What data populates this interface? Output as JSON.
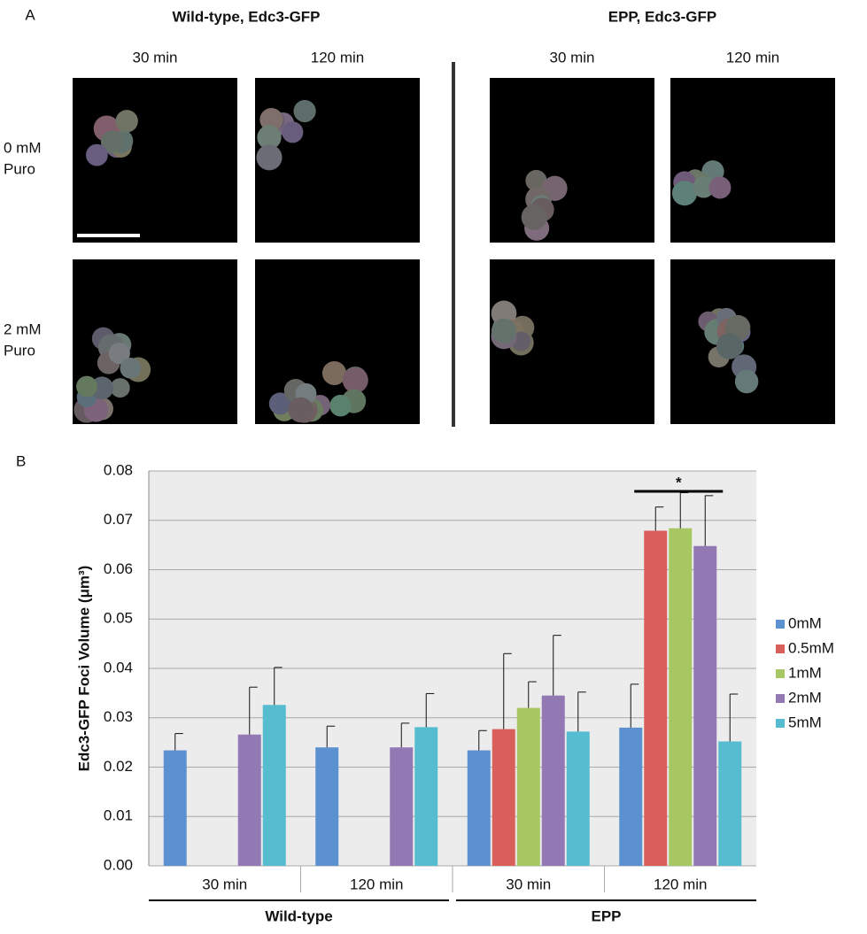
{
  "panel_a": {
    "label": "A",
    "groups": [
      {
        "title": "Wild-type, Edc3-GFP",
        "columns": [
          "30 min",
          "120 min"
        ]
      },
      {
        "title": "EPP, Edc3-GFP",
        "columns": [
          "30 min",
          "120 min"
        ]
      }
    ],
    "rows": [
      [
        "0 mM",
        "Puro"
      ],
      [
        "2 mM",
        "Puro"
      ]
    ]
  },
  "chart_data": {
    "type": "bar",
    "label": "B",
    "ylabel": "Edc3-GFP Foci Volume (μm³)",
    "categories": [
      "30 min",
      "120 min",
      "30 min",
      "120 min"
    ],
    "groups": [
      {
        "name": "Wild-type",
        "span": [
          0,
          1
        ]
      },
      {
        "name": "EPP",
        "span": [
          2,
          3
        ]
      }
    ],
    "series": [
      {
        "name": "0mM",
        "color": "#5b91d0",
        "values": [
          0.0234,
          0.024,
          0.0234,
          0.028
        ],
        "errors": [
          0.0034,
          0.0043,
          0.004,
          0.0088
        ]
      },
      {
        "name": "0.5mM",
        "color": "#d9605a",
        "values": [
          null,
          null,
          0.0277,
          0.0679
        ],
        "errors": [
          null,
          null,
          0.0153,
          0.0048
        ]
      },
      {
        "name": "1mM",
        "color": "#a6c762",
        "values": [
          null,
          null,
          0.032,
          0.0684
        ],
        "errors": [
          null,
          null,
          0.0053,
          0.0072
        ]
      },
      {
        "name": "2mM",
        "color": "#9279b4",
        "values": [
          0.0266,
          0.024,
          0.0345,
          0.0648
        ],
        "errors": [
          0.0096,
          0.0049,
          0.0122,
          0.0102
        ]
      },
      {
        "name": "5mM",
        "color": "#56bcd0",
        "values": [
          0.0326,
          0.0281,
          0.0272,
          0.0252
        ],
        "errors": [
          0.0076,
          0.0068,
          0.008,
          0.0096
        ]
      }
    ],
    "ylim": [
      0,
      0.08
    ],
    "yticks": [
      {
        "value": 0,
        "label": "0.00"
      },
      0.01,
      0.02,
      0.03,
      0.04,
      0.05,
      0.06,
      0.07,
      0.08
    ],
    "grid": true,
    "legend": "right",
    "annotations": [
      {
        "text": "*",
        "span": [
          3,
          3
        ]
      }
    ]
  }
}
